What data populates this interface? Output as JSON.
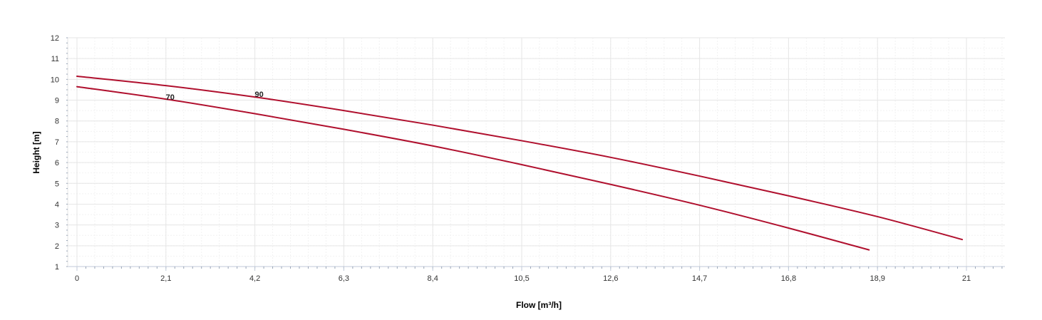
{
  "chart_data": {
    "type": "line",
    "xlabel": "Flow [m³/h]",
    "ylabel": "Height [m]",
    "xlim": [
      0,
      22
    ],
    "ylim": [
      1,
      12
    ],
    "x_ticks": [
      "0",
      "2,1",
      "4,2",
      "6,3",
      "8,4",
      "10,5",
      "12,6",
      "14,7",
      "16,8",
      "18,9",
      "21"
    ],
    "x_tick_values": [
      0,
      2.1,
      4.2,
      6.3,
      8.4,
      10.5,
      12.6,
      14.7,
      16.8,
      18.9,
      21
    ],
    "y_ticks": [
      "1",
      "2",
      "3",
      "4",
      "5",
      "6",
      "7",
      "8",
      "9",
      "10",
      "11",
      "12"
    ],
    "y_tick_values": [
      1,
      2,
      3,
      4,
      5,
      6,
      7,
      8,
      9,
      10,
      11,
      12
    ],
    "grid": true,
    "legend": "none",
    "series_color": "#b0102e",
    "grid_color": "#e6e6e6",
    "axis_color": "#c0cad8",
    "series": [
      {
        "name": "70",
        "label_position": [
          2.1,
          9.15
        ],
        "x": [
          0,
          2.1,
          4.2,
          6.3,
          8.4,
          10.5,
          12.6,
          14.7,
          16.8,
          18.7
        ],
        "y": [
          9.65,
          9.05,
          8.35,
          7.6,
          6.8,
          5.9,
          4.95,
          3.95,
          2.85,
          1.8
        ]
      },
      {
        "name": "90",
        "label_position": [
          4.2,
          9.3
        ],
        "x": [
          0,
          2.1,
          4.2,
          6.3,
          8.4,
          10.5,
          12.6,
          14.7,
          16.8,
          18.9,
          20.9
        ],
        "y": [
          10.15,
          9.7,
          9.15,
          8.5,
          7.8,
          7.05,
          6.25,
          5.35,
          4.4,
          3.4,
          2.3
        ]
      }
    ]
  }
}
